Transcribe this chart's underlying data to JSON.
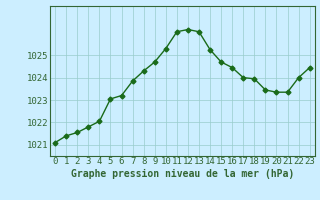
{
  "x": [
    0,
    1,
    2,
    3,
    4,
    5,
    6,
    7,
    8,
    9,
    10,
    11,
    12,
    13,
    14,
    15,
    16,
    17,
    18,
    19,
    20,
    21,
    22,
    23
  ],
  "y": [
    1021.1,
    1021.4,
    1021.55,
    1021.8,
    1022.05,
    1023.05,
    1023.2,
    1023.85,
    1024.3,
    1024.7,
    1025.3,
    1026.05,
    1026.15,
    1026.05,
    1025.25,
    1024.7,
    1024.45,
    1024.0,
    1023.95,
    1023.45,
    1023.35,
    1023.35,
    1024.0,
    1024.45
  ],
  "line_color": "#1a6b1a",
  "marker": "D",
  "marker_size": 2.5,
  "line_width": 1.0,
  "bg_color": "#cceeff",
  "grid_color": "#99cccc",
  "xlabel": "Graphe pression niveau de la mer (hPa)",
  "xlabel_fontsize": 7,
  "ylim": [
    1020.5,
    1027.2
  ],
  "yticks": [
    1021,
    1022,
    1023,
    1024,
    1025
  ],
  "xticks": [
    0,
    1,
    2,
    3,
    4,
    5,
    6,
    7,
    8,
    9,
    10,
    11,
    12,
    13,
    14,
    15,
    16,
    17,
    18,
    19,
    20,
    21,
    22,
    23
  ],
  "tick_fontsize": 6.5,
  "spine_color": "#336633"
}
